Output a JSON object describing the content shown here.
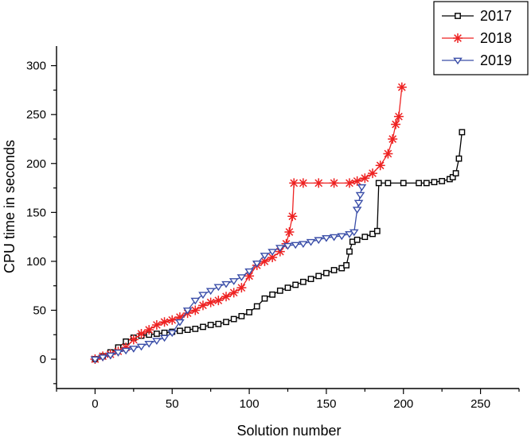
{
  "chart_data": {
    "type": "line",
    "title": "",
    "xlabel": "Solution number",
    "ylabel": "CPU time in seconds",
    "xlim": [
      -25,
      275
    ],
    "ylim": [
      -30,
      320
    ],
    "xticks": [
      0,
      50,
      100,
      150,
      200,
      250
    ],
    "yticks": [
      0,
      50,
      100,
      150,
      200,
      250,
      300
    ],
    "legend_position": "top-right",
    "series": [
      {
        "name": "2017",
        "color": "#000000",
        "marker": "square",
        "x": [
          0,
          5,
          10,
          15,
          20,
          25,
          30,
          35,
          40,
          45,
          50,
          55,
          60,
          65,
          70,
          75,
          80,
          85,
          90,
          95,
          100,
          105,
          110,
          115,
          120,
          125,
          130,
          135,
          140,
          145,
          150,
          155,
          160,
          163,
          165,
          167,
          170,
          175,
          180,
          183,
          184,
          190,
          200,
          210,
          215,
          220,
          225,
          230,
          232,
          234,
          236,
          238
        ],
        "values": [
          0,
          3,
          7,
          12,
          18,
          22,
          24,
          25,
          26,
          27,
          28,
          29,
          30,
          31,
          33,
          35,
          36,
          38,
          41,
          44,
          48,
          54,
          62,
          66,
          70,
          73,
          76,
          79,
          82,
          85,
          88,
          91,
          93,
          96,
          110,
          120,
          122,
          125,
          128,
          131,
          180,
          180,
          180,
          180,
          180,
          181,
          182,
          184,
          186,
          190,
          205,
          232
        ]
      },
      {
        "name": "2018",
        "color": "#ee2222",
        "marker": "asterisk",
        "x": [
          0,
          5,
          10,
          15,
          20,
          25,
          30,
          35,
          40,
          45,
          50,
          55,
          60,
          65,
          70,
          75,
          80,
          85,
          90,
          95,
          100,
          105,
          110,
          115,
          120,
          124,
          126,
          128,
          129,
          135,
          145,
          155,
          165,
          170,
          175,
          180,
          185,
          190,
          193,
          195,
          197,
          199
        ],
        "values": [
          0,
          3,
          5,
          8,
          12,
          20,
          26,
          30,
          35,
          38,
          40,
          43,
          47,
          50,
          55,
          58,
          60,
          64,
          68,
          73,
          85,
          96,
          100,
          104,
          110,
          118,
          130,
          146,
          180,
          180,
          180,
          180,
          180,
          182,
          185,
          190,
          198,
          210,
          225,
          240,
          248,
          278
        ]
      },
      {
        "name": "2019",
        "color": "#3a4ea8",
        "marker": "triangle-down",
        "x": [
          0,
          5,
          10,
          15,
          20,
          25,
          30,
          35,
          40,
          45,
          50,
          55,
          60,
          65,
          70,
          75,
          80,
          85,
          90,
          95,
          100,
          105,
          110,
          115,
          120,
          125,
          130,
          135,
          140,
          145,
          150,
          155,
          160,
          165,
          168,
          170,
          171,
          172,
          173
        ],
        "values": [
          0,
          2,
          4,
          7,
          9,
          11,
          13,
          16,
          19,
          22,
          27,
          38,
          50,
          60,
          66,
          70,
          74,
          77,
          80,
          84,
          90,
          98,
          106,
          110,
          114,
          116,
          117,
          118,
          120,
          122,
          124,
          125,
          126,
          128,
          130,
          153,
          160,
          168,
          176
        ]
      }
    ]
  }
}
